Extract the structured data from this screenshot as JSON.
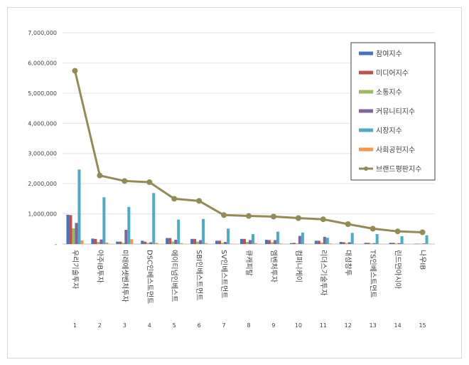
{
  "chart_data": {
    "type": "bar",
    "title": "",
    "xlabel": "",
    "ylabel": "",
    "ylim": [
      0,
      7000000
    ],
    "yticks": [
      "-",
      "1,000,000",
      "2,000,000",
      "3,000,000",
      "4,000,000",
      "5,000,000",
      "6,000,000",
      "7,000,000"
    ],
    "grid": true,
    "legend_position": "top-right",
    "categories": [
      "우리기술투자",
      "아주IB투자",
      "미래에셋벤처투자",
      "DSC인베스트먼트",
      "에이티넘인베스트",
      "SBI인베스트먼트",
      "SV인베스트먼트",
      "큐캐피탈",
      "엠벤처투자",
      "컴퍼니케이",
      "리더스기술투자",
      "대성창투",
      "TS인베스트먼트",
      "린드먼아시아",
      "나우IB"
    ],
    "ranks": [
      "1",
      "2",
      "3",
      "4",
      "5",
      "6",
      "7",
      "8",
      "9",
      "10",
      "11",
      "12",
      "13",
      "14",
      "15"
    ],
    "series": [
      {
        "name": "참여지수",
        "color": "#4472c4",
        "values": [
          970000,
          180000,
          80000,
          110000,
          200000,
          170000,
          110000,
          170000,
          140000,
          30000,
          110000,
          70000,
          40000,
          40000,
          10000
        ]
      },
      {
        "name": "미디어지수",
        "color": "#c0504d",
        "values": [
          960000,
          170000,
          80000,
          80000,
          200000,
          170000,
          110000,
          170000,
          130000,
          40000,
          110000,
          60000,
          40000,
          40000,
          10000
        ]
      },
      {
        "name": "소통지수",
        "color": "#9bbb59",
        "values": [
          520000,
          70000,
          40000,
          40000,
          80000,
          80000,
          40000,
          70000,
          60000,
          20000,
          50000,
          30000,
          20000,
          20000,
          10000
        ]
      },
      {
        "name": "커뮤니티지수",
        "color": "#8064a2",
        "values": [
          700000,
          150000,
          470000,
          60000,
          140000,
          130000,
          70000,
          130000,
          130000,
          270000,
          240000,
          60000,
          30000,
          30000,
          20000
        ]
      },
      {
        "name": "시장지수",
        "color": "#4bacc6",
        "values": [
          2470000,
          1550000,
          1230000,
          1690000,
          810000,
          830000,
          510000,
          330000,
          410000,
          380000,
          210000,
          370000,
          330000,
          260000,
          290000
        ]
      },
      {
        "name": "사회공헌지수",
        "color": "#f79646",
        "values": [
          120000,
          50000,
          160000,
          40000,
          30000,
          30000,
          10000,
          30000,
          20000,
          10000,
          20000,
          10000,
          10000,
          10000,
          10000
        ]
      }
    ],
    "line_series": {
      "name": "브랜드평판지수",
      "color": "#948a54",
      "values": [
        5740000,
        2270000,
        2090000,
        2050000,
        1500000,
        1430000,
        960000,
        930000,
        910000,
        860000,
        820000,
        660000,
        510000,
        420000,
        390000
      ]
    }
  }
}
